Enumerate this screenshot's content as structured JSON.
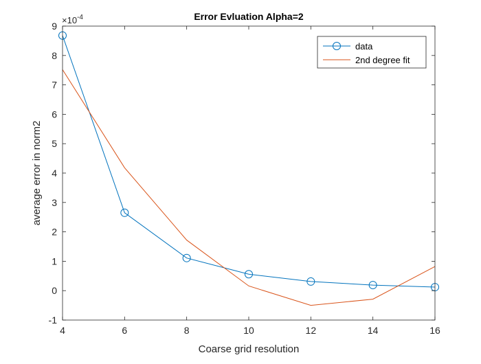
{
  "chart_data": {
    "type": "line",
    "title": "Error Evluation Alpha=2",
    "xlabel": "Coarse grid resolution",
    "ylabel": "average error in norm2",
    "y_exponent_label": "×10",
    "y_exponent_power": "-4",
    "xlim": [
      4,
      16
    ],
    "ylim": [
      -1,
      9
    ],
    "xticks": [
      4,
      6,
      8,
      10,
      12,
      14,
      16
    ],
    "yticks": [
      -1,
      0,
      1,
      2,
      3,
      4,
      5,
      6,
      7,
      8,
      9
    ],
    "grid": false,
    "legend_position": "top-right",
    "series": [
      {
        "name": "data",
        "color": "#0072BD",
        "marker": "circle",
        "x": [
          4,
          6,
          8,
          10,
          12,
          14,
          16
        ],
        "y": [
          8.68,
          2.65,
          1.11,
          0.56,
          0.31,
          0.19,
          0.12
        ]
      },
      {
        "name": "2nd degree fit",
        "color": "#D95319",
        "marker": "none",
        "x": [
          4,
          6,
          8,
          10,
          12,
          14,
          16
        ],
        "y": [
          7.52,
          4.18,
          1.72,
          0.16,
          -0.5,
          -0.29,
          0.82
        ]
      }
    ]
  }
}
